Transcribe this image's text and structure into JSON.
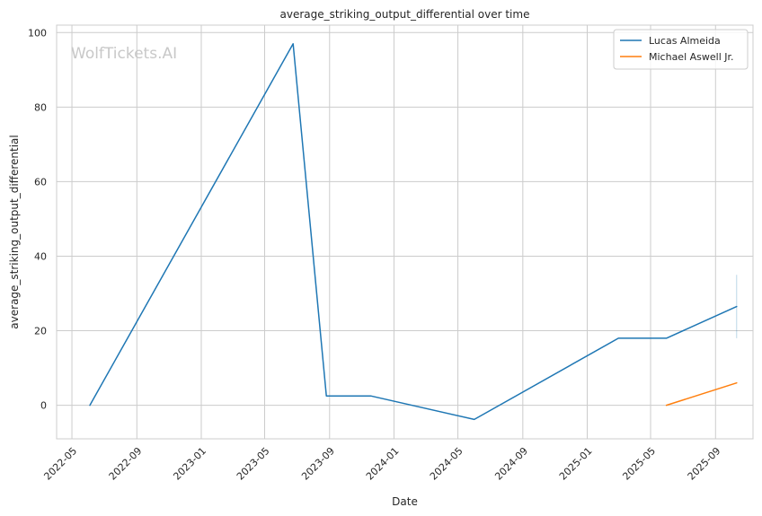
{
  "chart_data": {
    "type": "line",
    "title": "average_striking_output_differential over time",
    "xlabel": "Date",
    "ylabel": "average_striking_output_differential",
    "watermark": "WolfTickets.AI",
    "ylim": [
      -9,
      102
    ],
    "xlim": [
      "2022-04-02",
      "2025-11-11"
    ],
    "yticks": [
      0,
      20,
      40,
      60,
      80,
      100
    ],
    "xticks": [
      "2022-05",
      "2022-09",
      "2023-01",
      "2023-05",
      "2023-09",
      "2024-01",
      "2024-05",
      "2024-09",
      "2025-01",
      "2025-05",
      "2025-09"
    ],
    "grid": true,
    "legend": "top-right",
    "series": [
      {
        "name": "Lucas Almeida",
        "color": "#1f77b4",
        "x": [
          "2022-06-04",
          "2023-06-24",
          "2023-08-26",
          "2023-11-18",
          "2024-06-01",
          "2025-03-01",
          "2025-05-31",
          "2025-10-11"
        ],
        "y": [
          0.0,
          97.0,
          2.5,
          2.5,
          -3.8,
          18.0,
          18.0,
          26.5
        ]
      },
      {
        "name": "Michael Aswell Jr.",
        "color": "#ff7f0e",
        "x": [
          "2025-05-31",
          "2025-10-11"
        ],
        "y": [
          0.0,
          6.0
        ]
      }
    ],
    "error_band": {
      "series": "Lucas Almeida",
      "x": "2025-10-11",
      "ymin": 18.0,
      "ymax": 35.0
    }
  }
}
